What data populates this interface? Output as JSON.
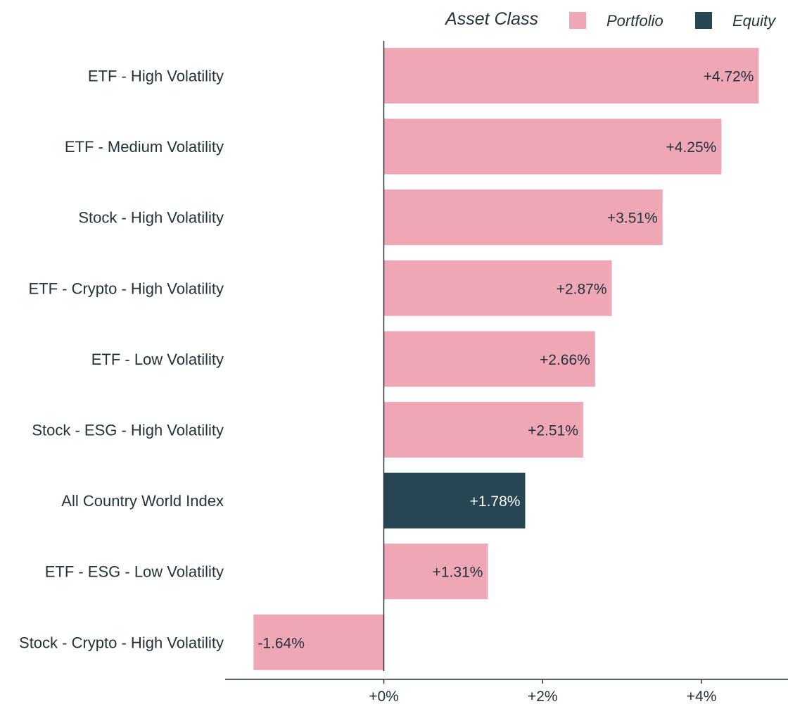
{
  "chart_data": {
    "type": "bar",
    "orientation": "horizontal",
    "legend": {
      "title": "Asset Class",
      "position": "top-right",
      "entries": [
        {
          "name": "Portfolio",
          "color": "#efa7b5"
        },
        {
          "name": "Equity",
          "color": "#264653"
        }
      ]
    },
    "categories": [
      "ETF - High Volatility",
      "ETF - Medium Volatility",
      "Stock - High Volatility",
      "ETF - Crypto - High Volatility",
      "ETF - Low Volatility",
      "Stock - ESG - High Volatility",
      "All Country World Index",
      "ETF - ESG - Low Volatility",
      "Stock - Crypto - High Volatility"
    ],
    "values": [
      4.72,
      4.25,
      3.51,
      2.87,
      2.66,
      2.51,
      1.78,
      1.31,
      -1.64
    ],
    "value_labels": [
      "+4.72%",
      "+4.25%",
      "+3.51%",
      "+2.87%",
      "+2.66%",
      "+2.51%",
      "+1.78%",
      "+1.31%",
      "-1.64%"
    ],
    "groups": [
      "Portfolio",
      "Portfolio",
      "Portfolio",
      "Portfolio",
      "Portfolio",
      "Portfolio",
      "Equity",
      "Portfolio",
      "Portfolio"
    ],
    "xlim": [
      -2,
      5
    ],
    "xticks": [
      0,
      2,
      4
    ],
    "xtick_labels": [
      "+0%",
      "+2%",
      "+4%"
    ],
    "xlabel": "",
    "ylabel": "",
    "grid": false
  }
}
